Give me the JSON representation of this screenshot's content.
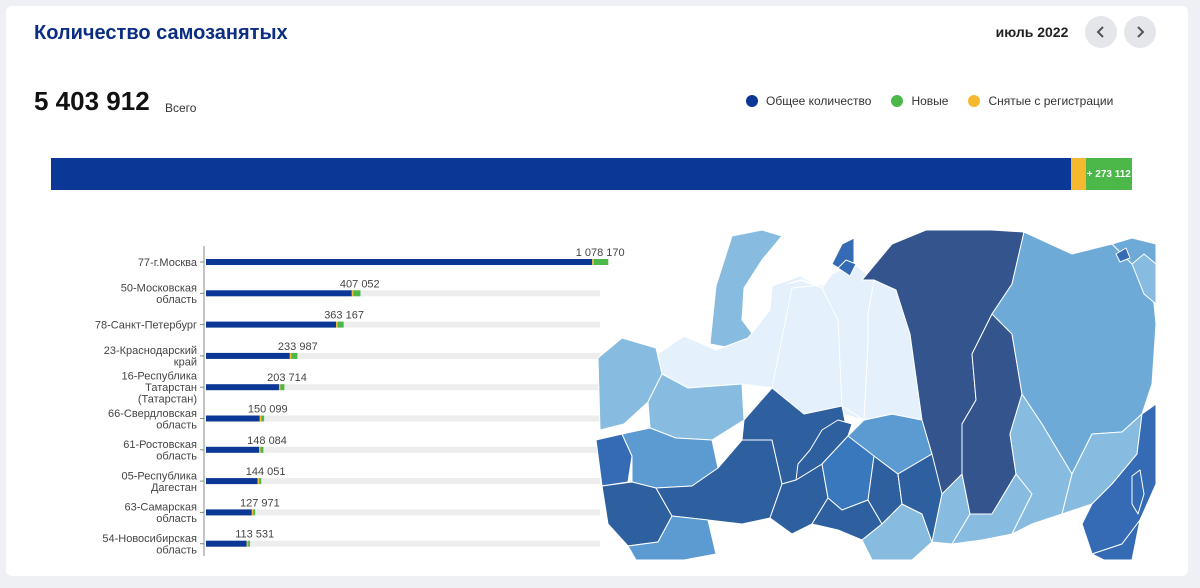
{
  "header": {
    "title": "Количество самозанятых",
    "period": "июль 2022",
    "prev_icon": "chevron-left-icon",
    "next_icon": "chevron-right-icon"
  },
  "summary": {
    "total_value": "5 403 912",
    "total_label": "Всего",
    "new_label": "+ 273 112",
    "share_total": 0.944,
    "share_removed": 0.013
  },
  "legend": [
    {
      "label": "Общее количество",
      "color": "#0b3796"
    },
    {
      "label": "Новые",
      "color": "#4cb84a"
    },
    {
      "label": "Снятые с регистрации",
      "color": "#f5b82e"
    }
  ],
  "chart_data": {
    "type": "bar",
    "orientation": "horizontal",
    "max_value": 1100000,
    "categories": [
      "77-г.Москва",
      "50-Московская область",
      "78-Санкт-Петербург",
      "23-Краснодарский край",
      "16-Республика Татарстан (Татарстан)",
      "66-Свердловская область",
      "61-Ростовская область",
      "05-Республика Дагестан",
      "63-Самарская область",
      "54-Новосибирская область"
    ],
    "label_lines": [
      [
        "77-г.Москва"
      ],
      [
        "50-Московская",
        "область"
      ],
      [
        "78-Санкт-Петербург"
      ],
      [
        "23-Краснодарский",
        "край"
      ],
      [
        "16-Республика",
        "Татарстан",
        "(Татарстан)"
      ],
      [
        "66-Свердловская",
        "область"
      ],
      [
        "61-Ростовская",
        "область"
      ],
      [
        "05-Республика",
        "Дагестан"
      ],
      [
        "63-Самарская",
        "область"
      ],
      [
        "54-Новосибирская",
        "область"
      ]
    ],
    "values": [
      1078170,
      407052,
      363167,
      233987,
      203714,
      150099,
      148084,
      144051,
      127971,
      113531
    ],
    "value_labels": [
      "1 078 170",
      "407 052",
      "363 167",
      "233 987",
      "203 714",
      "150 099",
      "148 084",
      "144 051",
      "127 971",
      "113 531"
    ],
    "new_values": [
      40000,
      20000,
      17000,
      17000,
      11000,
      8000,
      8000,
      6000,
      5000,
      5000
    ],
    "removed_values": [
      5000,
      2000,
      2000,
      1000,
      1000,
      1000,
      1000,
      500,
      500,
      500
    ]
  }
}
